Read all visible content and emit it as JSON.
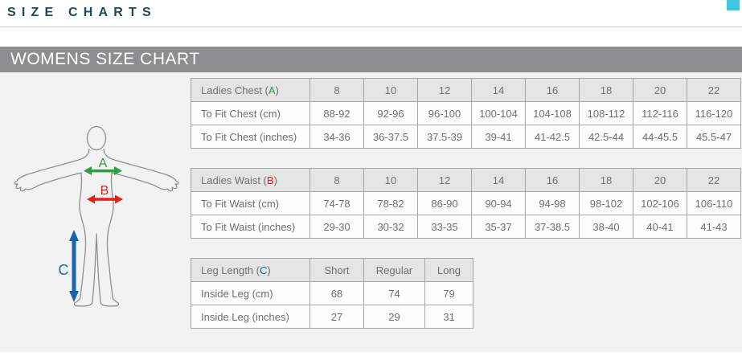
{
  "page": {
    "title": "SIZE CHARTS",
    "section_title": "WOMENS SIZE CHART"
  },
  "colors": {
    "title_teal": "#1b4a5c",
    "corner_accent": "#3fc6e0",
    "section_bar_gray": "#8d8d8f",
    "content_background": "#f2f2f2",
    "chest_green": "#2f9e41",
    "waist_red": "#e2231a",
    "leg_blue": "#1565b0"
  },
  "diagram": {
    "figure": "womens-body-outline",
    "markers": [
      {
        "letter": "A",
        "measure": "chest",
        "color": "#2f9e41"
      },
      {
        "letter": "B",
        "measure": "waist",
        "color": "#e2231a"
      },
      {
        "letter": "C",
        "measure": "inside-leg",
        "color": "#1565b0"
      }
    ]
  },
  "tables": [
    {
      "name": "chest",
      "marker_color": "#2f9e41",
      "header": {
        "label": "Ladies Chest",
        "marker": "A",
        "columns": [
          "8",
          "10",
          "12",
          "14",
          "16",
          "18",
          "20",
          "22"
        ]
      },
      "rows": [
        {
          "label": "To Fit Chest (cm)",
          "values": [
            "88-92",
            "92-96",
            "96-100",
            "100-104",
            "104-108",
            "108-112",
            "112-116",
            "116-120"
          ]
        },
        {
          "label": "To Fit Chest (inches)",
          "values": [
            "34-36",
            "36-37.5",
            "37.5-39",
            "39-41",
            "41-42.5",
            "42.5-44",
            "44-45.5",
            "45.5-47"
          ]
        }
      ]
    },
    {
      "name": "waist",
      "marker_color": "#e2231a",
      "header": {
        "label": "Ladies Waist",
        "marker": "B",
        "columns": [
          "8",
          "10",
          "12",
          "14",
          "16",
          "18",
          "20",
          "22"
        ]
      },
      "rows": [
        {
          "label": "To Fit Waist (cm)",
          "values": [
            "74-78",
            "78-82",
            "86-90",
            "90-94",
            "94-98",
            "98-102",
            "102-106",
            "106-110"
          ]
        },
        {
          "label": "To Fit Waist (inches)",
          "values": [
            "29-30",
            "30-32",
            "33-35",
            "35-37",
            "37-38.5",
            "38-40",
            "40-41",
            "41-43"
          ]
        }
      ]
    },
    {
      "name": "leg-length",
      "marker_color": "#1565b0",
      "header": {
        "label": "Leg Length",
        "marker": "C",
        "columns": [
          "Short",
          "Regular",
          "Long"
        ]
      },
      "rows": [
        {
          "label": "Inside Leg (cm)",
          "values": [
            "68",
            "74",
            "79"
          ]
        },
        {
          "label": "Inside Leg (inches)",
          "values": [
            "27",
            "29",
            "31"
          ]
        }
      ]
    }
  ]
}
